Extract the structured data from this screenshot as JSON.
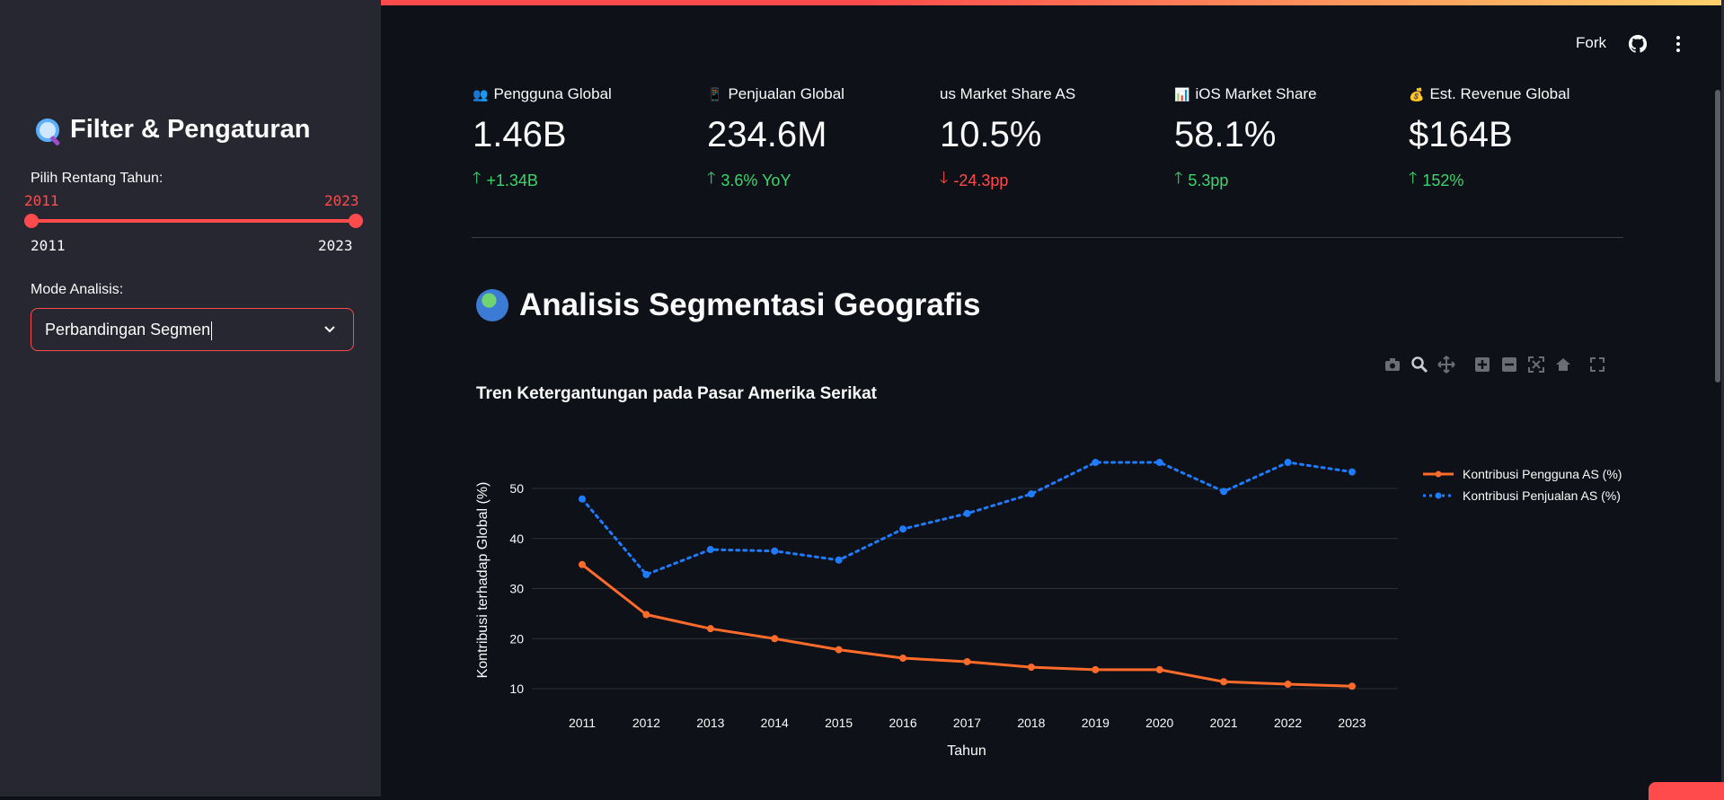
{
  "header": {
    "fork_label": "Fork",
    "github_icon": "github-icon",
    "more_icon": "vertical-dots-icon"
  },
  "colors": {
    "accent": "#ff4b4b",
    "background": "#0e1117",
    "sidebar": "#262730",
    "up": "#3dd56d",
    "down": "#ff4b4b",
    "series_users": "#ff6b2b",
    "series_sales": "#1f7bff"
  },
  "sidebar": {
    "title": "Filter & Pengaturan",
    "title_icon": "magnifier-icon",
    "range_label": "Pilih Rentang Tahun:",
    "range_low": "2011",
    "range_high": "2023",
    "range_min": "2011",
    "range_max": "2023",
    "mode_label": "Mode Analisis:",
    "mode_value": "Perbandingan Segmen"
  },
  "metrics": [
    {
      "emoji": "👥",
      "label": "Pengguna Global",
      "value": "1.46B",
      "delta": "+1.34B",
      "direction": "up"
    },
    {
      "emoji": "📱",
      "label": "Penjualan Global",
      "value": "234.6M",
      "delta": "3.6% YoY",
      "direction": "up"
    },
    {
      "emoji": "",
      "label": "us Market Share AS",
      "value": "10.5%",
      "delta": "-24.3pp",
      "direction": "down"
    },
    {
      "emoji": "📊",
      "label": "iOS Market Share",
      "value": "58.1%",
      "delta": "5.3pp",
      "direction": "up"
    },
    {
      "emoji": "💰",
      "label": "Est. Revenue Global",
      "value": "$164B",
      "delta": "152%",
      "direction": "up"
    }
  ],
  "section": {
    "title": "Analisis Segmentasi Geografis",
    "icon": "globe-icon"
  },
  "toolbar": {
    "icons": [
      "camera-icon",
      "zoom-icon",
      "pan-icon",
      "zoom-in-icon",
      "zoom-out-icon",
      "autoscale-icon",
      "home-icon",
      "fullscreen-icon"
    ]
  },
  "chart_data": {
    "type": "line",
    "title": "Tren Ketergantungan pada Pasar Amerika Serikat",
    "xlabel": "Tahun",
    "ylabel": "Kontribusi terhadap Global (%)",
    "x": [
      "2011",
      "2012",
      "2013",
      "2014",
      "2015",
      "2016",
      "2017",
      "2018",
      "2019",
      "2020",
      "2021",
      "2022",
      "2023"
    ],
    "ylim": [
      7.5,
      57
    ],
    "yticks": [
      10,
      20,
      30,
      40,
      50
    ],
    "grid": true,
    "legend_position": "top-right",
    "series": [
      {
        "name": "Kontribusi Pengguna AS (%)",
        "style": "solid",
        "values": [
          34.8,
          24.8,
          22.0,
          20.0,
          17.8,
          16.1,
          15.4,
          14.3,
          13.8,
          13.8,
          11.4,
          10.9,
          10.5
        ]
      },
      {
        "name": "Kontribusi Penjualan AS (%)",
        "style": "dotted",
        "values": [
          47.9,
          32.8,
          37.8,
          37.5,
          35.7,
          41.9,
          45.0,
          48.9,
          55.2,
          55.2,
          49.4,
          55.2,
          53.3
        ]
      }
    ]
  }
}
